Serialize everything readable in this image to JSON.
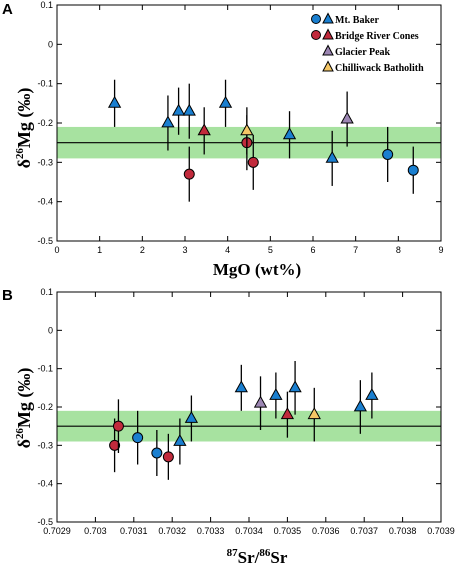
{
  "colors": {
    "mt_baker": "#1a7fd0",
    "bridge_river": "#c12a3c",
    "glacier_peak": "#9c86b3",
    "chilliwack": "#f5c766",
    "band": "#a7e2a0"
  },
  "chart_data": [
    {
      "type": "scatter",
      "panel_label": "A",
      "xlabel": "MgO (wt%)",
      "ylabel_base": "δ",
      "ylabel_sup": "26",
      "ylabel_rest": "Mg (‰)",
      "xlim": [
        0,
        9
      ],
      "ylim": [
        -0.5,
        0.1
      ],
      "xticks": [
        "0",
        "1",
        "2",
        "3",
        "4",
        "5",
        "6",
        "7",
        "8",
        "9"
      ],
      "yticks": [
        "0.1",
        "0",
        "-0.1",
        "-0.2",
        "-0.3",
        "-0.4",
        "-0.5"
      ],
      "reference_line": -0.25,
      "band": [
        -0.29,
        -0.21
      ],
      "legend": {
        "placement": "top-right",
        "entries": [
          "Mt. Baker",
          "Bridge River Cones",
          "Glacier Peak",
          "Chilliwack Batholith"
        ]
      },
      "series": [
        {
          "group": "Mt. Baker",
          "marker": "triangle",
          "points": [
            {
              "x": 1.35,
              "y": -0.15,
              "err": 0.06
            },
            {
              "x": 2.6,
              "y": -0.2,
              "err": 0.07
            },
            {
              "x": 2.85,
              "y": -0.17,
              "err": 0.06
            },
            {
              "x": 3.1,
              "y": -0.17,
              "err": 0.07
            },
            {
              "x": 3.95,
              "y": -0.15,
              "err": 0.06
            },
            {
              "x": 5.45,
              "y": -0.23,
              "err": 0.06
            },
            {
              "x": 6.45,
              "y": -0.29,
              "err": 0.07
            }
          ]
        },
        {
          "group": "Mt. Baker",
          "marker": "circle",
          "points": [
            {
              "x": 7.75,
              "y": -0.28,
              "err": 0.07
            },
            {
              "x": 8.35,
              "y": -0.32,
              "err": 0.06
            }
          ]
        },
        {
          "group": "Bridge River Cones",
          "marker": "triangle",
          "points": [
            {
              "x": 3.45,
              "y": -0.22,
              "err": 0.06
            }
          ]
        },
        {
          "group": "Bridge River Cones",
          "marker": "circle",
          "points": [
            {
              "x": 3.1,
              "y": -0.33,
              "err": 0.07
            },
            {
              "x": 4.45,
              "y": -0.25,
              "err": 0.07
            },
            {
              "x": 4.6,
              "y": -0.3,
              "err": 0.07
            }
          ]
        },
        {
          "group": "Glacier Peak",
          "marker": "triangle",
          "points": [
            {
              "x": 6.8,
              "y": -0.19,
              "err": 0.07
            }
          ]
        },
        {
          "group": "Chilliwack Batholith",
          "marker": "triangle",
          "points": [
            {
              "x": 4.45,
              "y": -0.22,
              "err": 0.06
            }
          ]
        }
      ]
    },
    {
      "type": "scatter",
      "panel_label": "B",
      "xlabel_sup1": "87",
      "xlabel_mid": "Sr/",
      "xlabel_sup2": "86",
      "xlabel_end": "Sr",
      "ylabel_base": "δ",
      "ylabel_sup": "26",
      "ylabel_rest": "Mg (‰)",
      "xlim": [
        0.7029,
        0.7039
      ],
      "ylim": [
        -0.5,
        0.1
      ],
      "xticks": [
        "0.7029",
        "0.703",
        "0.7031",
        "0.7032",
        "0.7033",
        "0.7034",
        "0.7035",
        "0.7036",
        "0.7037",
        "0.7038",
        "0.7039"
      ],
      "yticks": [
        "0.1",
        "0",
        "-0.1",
        "-0.2",
        "-0.3",
        "-0.4",
        "-0.5"
      ],
      "reference_line": -0.25,
      "band": [
        -0.29,
        -0.21
      ],
      "series": [
        {
          "group": "Mt. Baker",
          "marker": "circle",
          "points": [
            {
              "x": 0.70311,
              "y": -0.28,
              "err": 0.07
            },
            {
              "x": 0.70316,
              "y": -0.32,
              "err": 0.06
            }
          ]
        },
        {
          "group": "Mt. Baker",
          "marker": "triangle",
          "points": [
            {
              "x": 0.70322,
              "y": -0.29,
              "err": 0.06
            },
            {
              "x": 0.70325,
              "y": -0.23,
              "err": 0.06
            },
            {
              "x": 0.70338,
              "y": -0.15,
              "err": 0.06
            },
            {
              "x": 0.70347,
              "y": -0.17,
              "err": 0.06
            },
            {
              "x": 0.70352,
              "y": -0.15,
              "err": 0.07
            },
            {
              "x": 0.70369,
              "y": -0.2,
              "err": 0.07
            },
            {
              "x": 0.70372,
              "y": -0.17,
              "err": 0.06
            }
          ]
        },
        {
          "group": "Bridge River Cones",
          "marker": "circle",
          "points": [
            {
              "x": 0.70305,
              "y": -0.3,
              "err": 0.07
            },
            {
              "x": 0.70306,
              "y": -0.25,
              "err": 0.07
            },
            {
              "x": 0.70319,
              "y": -0.33,
              "err": 0.06
            }
          ]
        },
        {
          "group": "Bridge River Cones",
          "marker": "triangle",
          "points": [
            {
              "x": 0.7035,
              "y": -0.22,
              "err": 0.06
            }
          ]
        },
        {
          "group": "Glacier Peak",
          "marker": "triangle",
          "points": [
            {
              "x": 0.70343,
              "y": -0.19,
              "err": 0.07
            }
          ]
        },
        {
          "group": "Chilliwack Batholith",
          "marker": "triangle",
          "points": [
            {
              "x": 0.70357,
              "y": -0.22,
              "err": 0.07
            }
          ]
        }
      ]
    }
  ]
}
